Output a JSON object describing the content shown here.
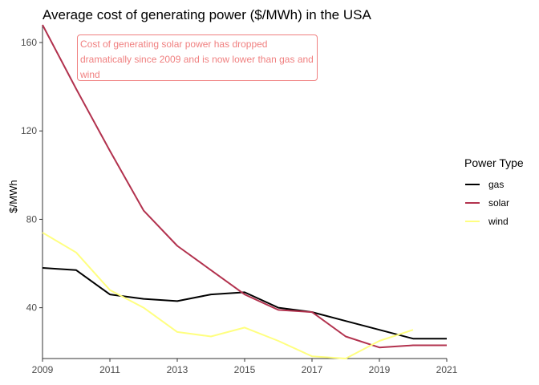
{
  "chart_data": {
    "type": "line",
    "title": "Average cost of generating power ($/MWh) in the USA",
    "xlabel": "",
    "ylabel": "$/MWh",
    "x": [
      2009,
      2010,
      2011,
      2012,
      2013,
      2014,
      2015,
      2016,
      2017,
      2018,
      2019,
      2020,
      2021
    ],
    "xlim": [
      2009,
      2021
    ],
    "ylim": [
      17,
      168
    ],
    "x_ticks": [
      2009,
      2011,
      2013,
      2015,
      2017,
      2019,
      2021
    ],
    "y_ticks": [
      40,
      80,
      120,
      160
    ],
    "grid": false,
    "legend": {
      "title": "Power Type",
      "placement": "right"
    },
    "series": [
      {
        "name": "gas",
        "color": "#000000",
        "values": [
          58,
          57,
          46,
          44,
          43,
          46,
          47,
          40,
          38,
          34,
          30,
          26,
          26
        ]
      },
      {
        "name": "solar",
        "color": "#b2324e",
        "values": [
          168,
          139,
          111,
          84,
          68,
          57,
          46,
          39,
          38,
          27,
          22,
          23,
          23
        ]
      },
      {
        "name": "wind",
        "color": "#ffff80",
        "values": [
          74,
          65,
          48,
          40,
          29,
          27,
          31,
          25,
          18,
          17,
          25,
          30,
          null
        ]
      }
    ],
    "annotation": "Cost of generating solar power has dropped dramatically since 2009 and is now lower than gas and wind"
  }
}
